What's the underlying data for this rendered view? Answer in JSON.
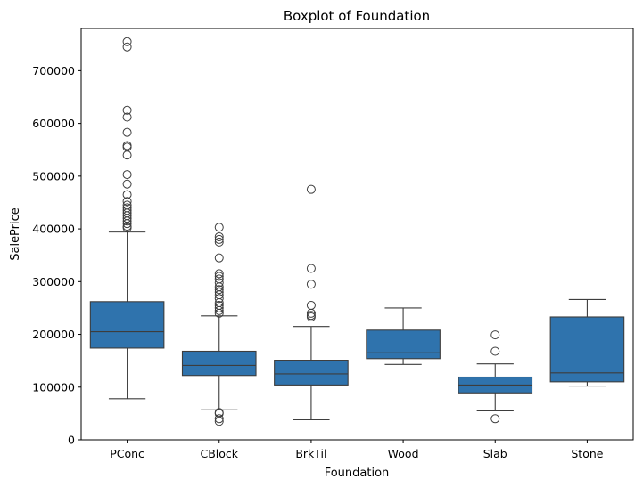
{
  "chart_data": {
    "type": "boxplot",
    "title": "Boxplot of Foundation",
    "xlabel": "Foundation",
    "ylabel": "SalePrice",
    "ylim": [
      0,
      780000
    ],
    "yticks": [
      0,
      100000,
      200000,
      300000,
      400000,
      500000,
      600000,
      700000
    ],
    "ytick_labels": [
      "0",
      "100000",
      "200000",
      "300000",
      "400000",
      "500000",
      "600000",
      "700000"
    ],
    "grid": false,
    "colors": {
      "box": "#2f73ad",
      "line": "#3d3d3d",
      "axis": "#000000"
    },
    "categories": [
      "PConc",
      "CBlock",
      "BrkTil",
      "Wood",
      "Slab",
      "Stone"
    ],
    "boxes": [
      {
        "category": "PConc",
        "whisker_low": 78000,
        "q1": 174000,
        "median": 205000,
        "q3": 262000,
        "whisker_high": 394000,
        "outliers": [
          402000,
          405000,
          410000,
          415000,
          420000,
          425000,
          430000,
          435000,
          440000,
          445000,
          452000,
          465000,
          485000,
          503000,
          540000,
          555000,
          558000,
          583000,
          612000,
          625000,
          745000,
          755000
        ]
      },
      {
        "category": "CBlock",
        "whisker_low": 57000,
        "q1": 122000,
        "median": 141000,
        "q3": 168000,
        "whisker_high": 235000,
        "outliers": [
          35000,
          40000,
          50000,
          52000,
          240000,
          245000,
          250000,
          255000,
          260000,
          268000,
          275000,
          280000,
          285000,
          290000,
          298000,
          305000,
          310000,
          315000,
          345000,
          375000,
          380000,
          385000,
          403000
        ]
      },
      {
        "category": "BrkTil",
        "whisker_low": 38000,
        "q1": 104000,
        "median": 125000,
        "q3": 151000,
        "whisker_high": 215000,
        "outliers": [
          233000,
          236000,
          240000,
          255000,
          295000,
          325000,
          475000
        ]
      },
      {
        "category": "Wood",
        "whisker_low": 143000,
        "q1": 154000,
        "median": 165000,
        "q3": 208000,
        "whisker_high": 250000,
        "outliers": []
      },
      {
        "category": "Slab",
        "whisker_low": 55000,
        "q1": 89000,
        "median": 104000,
        "q3": 119000,
        "whisker_high": 144000,
        "outliers": [
          40000,
          168000,
          199000
        ]
      },
      {
        "category": "Stone",
        "whisker_low": 102000,
        "q1": 110000,
        "median": 127000,
        "q3": 233000,
        "whisker_high": 266000,
        "outliers": []
      }
    ]
  }
}
